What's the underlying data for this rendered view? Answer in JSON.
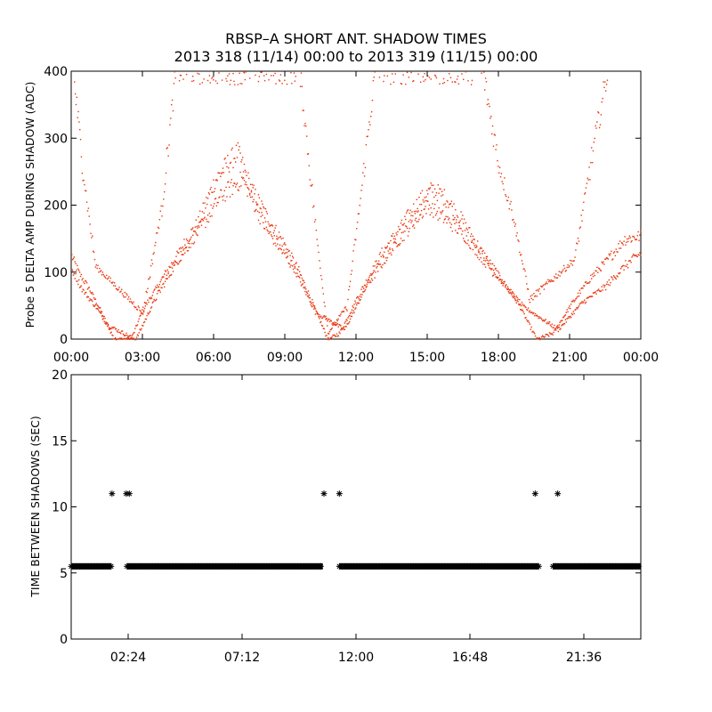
{
  "title": {
    "line1": "RBSP–A SHORT ANT. SHADOW TIMES",
    "line2": "2013 318 (11/14) 00:00 to 2013 319 (11/15) 00:00"
  },
  "chart_data": [
    {
      "type": "scatter",
      "name": "delta-amp",
      "ylabel": "Probe 5 DELTA AMP DURING SHADOW (ADC)",
      "xlabel": "",
      "xlim": [
        0,
        24
      ],
      "ylim": [
        0,
        400
      ],
      "xtick_values": [
        0,
        3,
        6,
        9,
        12,
        15,
        18,
        21,
        24
      ],
      "xtick_labels": [
        "00:00",
        "03:00",
        "06:00",
        "09:00",
        "12:00",
        "15:00",
        "18:00",
        "21:00",
        "00:00"
      ],
      "ytick_values": [
        0,
        100,
        200,
        300,
        400
      ],
      "ytick_labels": [
        "0",
        "100",
        "200",
        "300",
        "400"
      ],
      "color": "#e8340c",
      "series": [
        {
          "name": "main-band",
          "points": [
            [
              0,
              125
            ],
            [
              0.3,
              100
            ],
            [
              0.8,
              72
            ],
            [
              1.2,
              45
            ],
            [
              1.6,
              15
            ],
            [
              1.8,
              0
            ],
            [
              2.5,
              0
            ],
            [
              3.0,
              45
            ],
            [
              3.8,
              90
            ],
            [
              4.6,
              135
            ],
            [
              5.4,
              180
            ],
            [
              6.0,
              235
            ],
            [
              6.5,
              260
            ],
            [
              7.0,
              280
            ],
            [
              7.5,
              230
            ],
            [
              8.2,
              185
            ],
            [
              9.0,
              140
            ],
            [
              9.6,
              100
            ],
            [
              10.2,
              50
            ],
            [
              10.8,
              0
            ],
            [
              11.3,
              10
            ],
            [
              12.0,
              60
            ],
            [
              13.0,
              125
            ],
            [
              14.0,
              175
            ],
            [
              14.6,
              205
            ],
            [
              15.2,
              225
            ],
            [
              15.8,
              210
            ],
            [
              16.5,
              175
            ],
            [
              17.2,
              135
            ],
            [
              18.0,
              95
            ],
            [
              18.8,
              55
            ],
            [
              19.6,
              0
            ],
            [
              20.3,
              10
            ],
            [
              21.0,
              50
            ],
            [
              21.8,
              90
            ],
            [
              22.6,
              120
            ],
            [
              23.3,
              150
            ],
            [
              24,
              155
            ]
          ]
        },
        {
          "name": "secondary-band",
          "points": [
            [
              0,
              105
            ],
            [
              0.5,
              72
            ],
            [
              1.0,
              50
            ],
            [
              1.5,
              22
            ],
            [
              2.7,
              0
            ],
            [
              3.5,
              60
            ],
            [
              4.5,
              120
            ],
            [
              5.4,
              165
            ],
            [
              6.3,
              215
            ],
            [
              7.2,
              240
            ],
            [
              8.2,
              165
            ],
            [
              9.3,
              110
            ],
            [
              10.3,
              40
            ],
            [
              11.5,
              15
            ],
            [
              12.5,
              85
            ],
            [
              13.8,
              150
            ],
            [
              15.0,
              200
            ],
            [
              16.3,
              165
            ],
            [
              17.8,
              100
            ],
            [
              19.0,
              50
            ],
            [
              20.5,
              15
            ],
            [
              21.5,
              55
            ],
            [
              22.5,
              80
            ],
            [
              23.3,
              110
            ],
            [
              24,
              130
            ]
          ]
        },
        {
          "name": "steep-branches",
          "points": [
            [
              0.05,
              405
            ],
            [
              0.5,
              245
            ],
            [
              1.0,
              110
            ],
            [
              3.0,
              40
            ],
            [
              3.8,
              200
            ],
            [
              4.4,
              405
            ],
            [
              9.6,
              405
            ],
            [
              10.3,
              160
            ],
            [
              10.8,
              10
            ],
            [
              11.6,
              50
            ],
            [
              12.2,
              220
            ],
            [
              12.8,
              405
            ],
            [
              17.3,
              405
            ],
            [
              18.0,
              260
            ],
            [
              18.6,
              185
            ],
            [
              19.3,
              60
            ],
            [
              21.2,
              120
            ],
            [
              21.8,
              250
            ],
            [
              22.6,
              405
            ]
          ]
        }
      ]
    },
    {
      "type": "scatter",
      "name": "time-between-shadows",
      "ylabel": "TIME BETWEEN SHADOWS (SEC)",
      "xlabel": "",
      "xlim": [
        0,
        24
      ],
      "ylim": [
        0,
        20
      ],
      "xtick_values": [
        2.4,
        7.2,
        12,
        16.8,
        21.6
      ],
      "xtick_labels": [
        "02:24",
        "07:12",
        "12:00",
        "16:48",
        "21:36"
      ],
      "ytick_values": [
        0,
        5,
        10,
        15,
        20
      ],
      "ytick_labels": [
        "0",
        "5",
        "10",
        "15",
        "20"
      ],
      "color": "#000000",
      "baseline": {
        "y": 5.5,
        "segments": [
          [
            0,
            1.7
          ],
          [
            2.35,
            10.6
          ],
          [
            11.3,
            19.7
          ],
          [
            20.3,
            24
          ]
        ]
      },
      "outliers": [
        [
          1.72,
          11
        ],
        [
          2.32,
          11
        ],
        [
          2.45,
          11
        ],
        [
          10.65,
          11
        ],
        [
          11.3,
          11
        ],
        [
          19.55,
          11
        ],
        [
          20.5,
          11
        ]
      ]
    }
  ]
}
